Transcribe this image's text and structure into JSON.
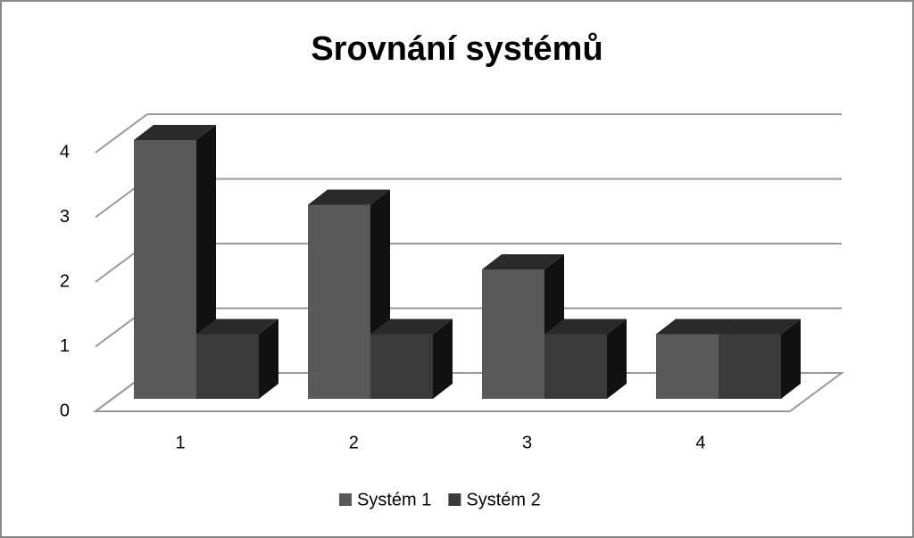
{
  "chart_data": {
    "type": "bar3d",
    "title": "Srovnání systémů",
    "categories": [
      "1",
      "2",
      "3",
      "4"
    ],
    "series": [
      {
        "name": "Systém 1",
        "color": "#595959",
        "values": [
          4,
          3,
          2,
          1
        ]
      },
      {
        "name": "Systém 2",
        "color": "#3a3a3a",
        "values": [
          1,
          1,
          1,
          1
        ]
      }
    ],
    "ylim": [
      0,
      4
    ],
    "yticks": [
      0,
      1,
      2,
      3,
      4
    ],
    "grid": true,
    "legend": "bottom"
  }
}
